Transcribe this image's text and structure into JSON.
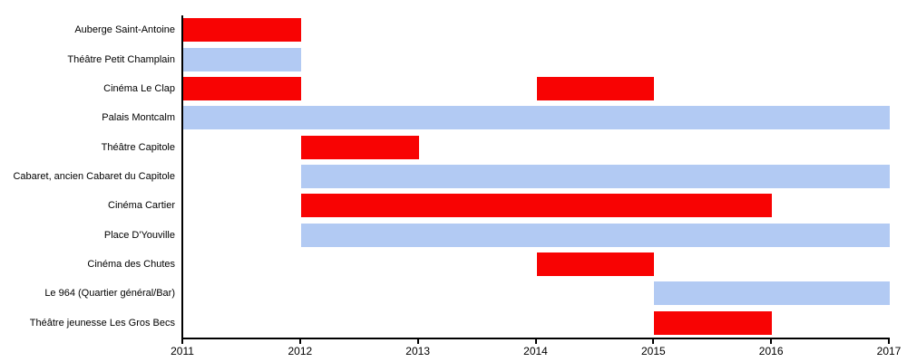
{
  "chart_data": {
    "type": "bar",
    "variant": "gantt",
    "title": "",
    "xlabel": "",
    "ylabel": "",
    "grid": false,
    "legend": null,
    "x_axis": {
      "min": 2011,
      "max": 2017,
      "ticks": [
        2011,
        2012,
        2013,
        2014,
        2015,
        2016,
        2017
      ]
    },
    "colors": {
      "red": "#f80303",
      "blue": "#b2caf3",
      "axis": "#000000"
    },
    "rows": [
      {
        "label": "Auberge Saint-Antoine",
        "color": "red",
        "bars": [
          [
            2011,
            2012
          ]
        ]
      },
      {
        "label": "Théâtre Petit Champlain",
        "color": "blue",
        "bars": [
          [
            2011,
            2012
          ]
        ]
      },
      {
        "label": "Cinéma Le Clap",
        "color": "red",
        "bars": [
          [
            2011,
            2012
          ],
          [
            2014,
            2015
          ]
        ]
      },
      {
        "label": "Palais Montcalm",
        "color": "blue",
        "bars": [
          [
            2011,
            2017
          ]
        ]
      },
      {
        "label": "Théâtre Capitole",
        "color": "red",
        "bars": [
          [
            2012,
            2013
          ]
        ]
      },
      {
        "label": "Cabaret, ancien Cabaret du Capitole",
        "color": "blue",
        "bars": [
          [
            2012,
            2017
          ]
        ]
      },
      {
        "label": "Cinéma Cartier",
        "color": "red",
        "bars": [
          [
            2012,
            2016
          ]
        ]
      },
      {
        "label": "Place D'Youville",
        "color": "blue",
        "bars": [
          [
            2012,
            2017
          ]
        ]
      },
      {
        "label": "Cinéma des Chutes",
        "color": "red",
        "bars": [
          [
            2014,
            2015
          ]
        ]
      },
      {
        "label": "Le 964 (Quartier général/Bar)",
        "color": "blue",
        "bars": [
          [
            2015,
            2017
          ]
        ]
      },
      {
        "label": "Théâtre jeunesse Les Gros Becs",
        "color": "red",
        "bars": [
          [
            2015,
            2016
          ]
        ]
      }
    ]
  }
}
